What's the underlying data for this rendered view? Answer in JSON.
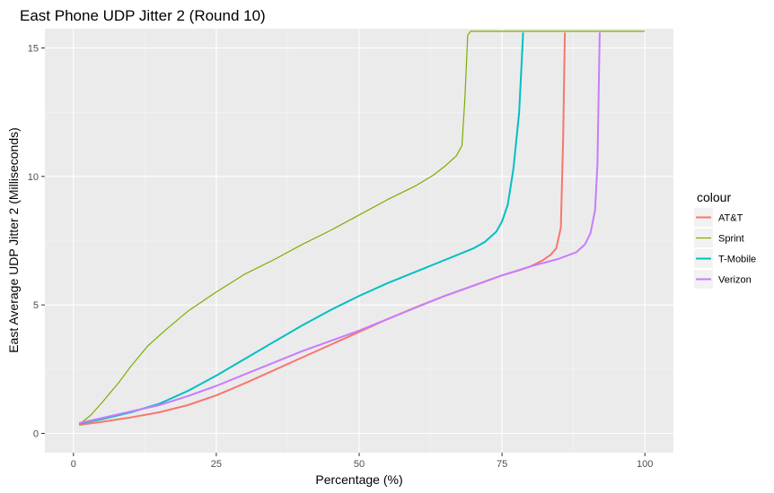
{
  "chart_data": {
    "type": "line",
    "title": "East Phone UDP Jitter 2 (Round 10)",
    "xlabel": "Percentage (%)",
    "ylabel": "East Average UDP Jitter 2 (Milliseconds)",
    "xlim": [
      -5,
      105
    ],
    "ylim": [
      -0.75,
      15.75
    ],
    "x_ticks": [
      0,
      25,
      50,
      75,
      100
    ],
    "x_tick_labels": [
      "0",
      "25",
      "50",
      "75",
      "100"
    ],
    "y_ticks": [
      0,
      5,
      10,
      15
    ],
    "y_tick_labels": [
      "0",
      "5",
      "10",
      "15"
    ],
    "grid": true,
    "legend": {
      "title": "colour",
      "position": "right",
      "entries": [
        "AT&T",
        "Sprint",
        "T-Mobile",
        "Verizon"
      ]
    },
    "series": [
      {
        "name": "AT&T",
        "color": "#F8766D",
        "stroke_width": 2,
        "points": [
          [
            1,
            0.33
          ],
          [
            5,
            0.45
          ],
          [
            10,
            0.62
          ],
          [
            15,
            0.82
          ],
          [
            20,
            1.1
          ],
          [
            25,
            1.48
          ],
          [
            30,
            1.95
          ],
          [
            35,
            2.45
          ],
          [
            40,
            2.95
          ],
          [
            45,
            3.45
          ],
          [
            50,
            3.95
          ],
          [
            55,
            4.45
          ],
          [
            60,
            4.92
          ],
          [
            65,
            5.35
          ],
          [
            70,
            5.75
          ],
          [
            75,
            6.15
          ],
          [
            78,
            6.35
          ],
          [
            80,
            6.5
          ],
          [
            82,
            6.72
          ],
          [
            83.5,
            6.95
          ],
          [
            84.5,
            7.2
          ],
          [
            85.3,
            8.0
          ],
          [
            85.7,
            11.5
          ],
          [
            86,
            15.6
          ]
        ]
      },
      {
        "name": "Sprint",
        "color": "#7CAE00",
        "stroke_width": 1.2,
        "points": [
          [
            1,
            0.35
          ],
          [
            3,
            0.7
          ],
          [
            5,
            1.2
          ],
          [
            8,
            2.0
          ],
          [
            10,
            2.6
          ],
          [
            13,
            3.4
          ],
          [
            16,
            4.0
          ],
          [
            20,
            4.75
          ],
          [
            25,
            5.5
          ],
          [
            30,
            6.2
          ],
          [
            35,
            6.75
          ],
          [
            40,
            7.35
          ],
          [
            45,
            7.9
          ],
          [
            50,
            8.5
          ],
          [
            55,
            9.1
          ],
          [
            60,
            9.65
          ],
          [
            63,
            10.05
          ],
          [
            65,
            10.4
          ],
          [
            67,
            10.8
          ],
          [
            68,
            11.2
          ],
          [
            68.5,
            13.0
          ],
          [
            69,
            15.5
          ],
          [
            69.5,
            15.65
          ],
          [
            100,
            15.65
          ]
        ]
      },
      {
        "name": "T-Mobile",
        "color": "#00BFC4",
        "stroke_width": 2,
        "points": [
          [
            1,
            0.38
          ],
          [
            5,
            0.55
          ],
          [
            10,
            0.82
          ],
          [
            15,
            1.15
          ],
          [
            20,
            1.65
          ],
          [
            25,
            2.25
          ],
          [
            30,
            2.9
          ],
          [
            35,
            3.55
          ],
          [
            40,
            4.2
          ],
          [
            45,
            4.8
          ],
          [
            50,
            5.35
          ],
          [
            55,
            5.85
          ],
          [
            60,
            6.3
          ],
          [
            65,
            6.75
          ],
          [
            70,
            7.2
          ],
          [
            72,
            7.45
          ],
          [
            74,
            7.85
          ],
          [
            75,
            8.25
          ],
          [
            76,
            8.9
          ],
          [
            77,
            10.3
          ],
          [
            78,
            12.5
          ],
          [
            78.7,
            15.6
          ]
        ]
      },
      {
        "name": "Verizon",
        "color": "#C77CFF",
        "stroke_width": 2,
        "points": [
          [
            1,
            0.4
          ],
          [
            5,
            0.6
          ],
          [
            10,
            0.85
          ],
          [
            15,
            1.1
          ],
          [
            20,
            1.45
          ],
          [
            25,
            1.85
          ],
          [
            30,
            2.3
          ],
          [
            35,
            2.75
          ],
          [
            40,
            3.2
          ],
          [
            45,
            3.6
          ],
          [
            50,
            4.0
          ],
          [
            55,
            4.45
          ],
          [
            60,
            4.9
          ],
          [
            65,
            5.35
          ],
          [
            70,
            5.75
          ],
          [
            75,
            6.15
          ],
          [
            80,
            6.5
          ],
          [
            85,
            6.8
          ],
          [
            88,
            7.05
          ],
          [
            89.5,
            7.35
          ],
          [
            90.5,
            7.8
          ],
          [
            91.3,
            8.7
          ],
          [
            91.7,
            10.5
          ],
          [
            92.1,
            15.6
          ]
        ]
      }
    ]
  }
}
